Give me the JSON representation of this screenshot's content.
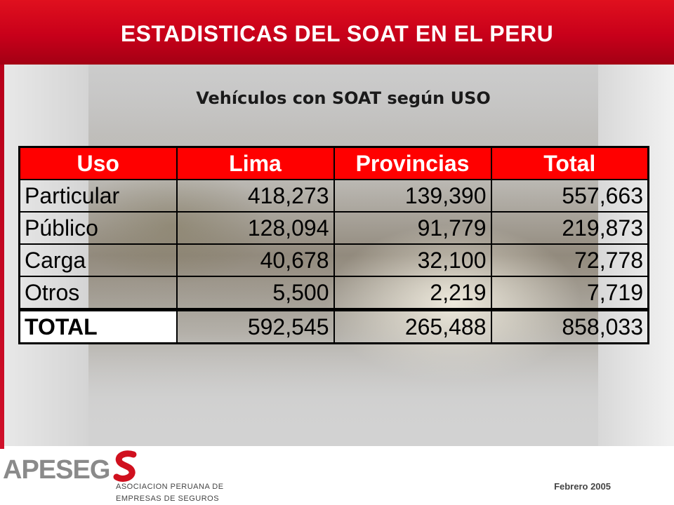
{
  "slide": {
    "title": "ESTADISTICAS DEL SOAT EN EL PERU",
    "subtitle": "Vehículos con SOAT según USO"
  },
  "table": {
    "headers": [
      "Uso",
      "Lima",
      "Provincias",
      "Total"
    ],
    "rows": [
      {
        "uso": "Particular",
        "lima": "418,273",
        "provincias": "139,390",
        "total": "557,663"
      },
      {
        "uso": "Público",
        "lima": "128,094",
        "provincias": "91,779",
        "total": "219,873"
      },
      {
        "uso": "Carga",
        "lima": "40,678",
        "provincias": "32,100",
        "total": "72,778"
      },
      {
        "uso": "Otros",
        "lima": "5,500",
        "provincias": "2,219",
        "total": "7,719"
      }
    ],
    "total_row": {
      "uso": "TOTAL",
      "lima": "592,545",
      "provincias": "265,488",
      "total": "858,033"
    }
  },
  "footer": {
    "logo_text": "APESEG",
    "org_line1": "ASOCIACION PERUANA DE",
    "org_line2": "EMPRESAS DE SEGUROS",
    "date": "Febrero 2005"
  },
  "colors": {
    "brand_red": "#d0101e",
    "header_cell": "#ff0000",
    "logo_gray": "#8a8a8a"
  }
}
